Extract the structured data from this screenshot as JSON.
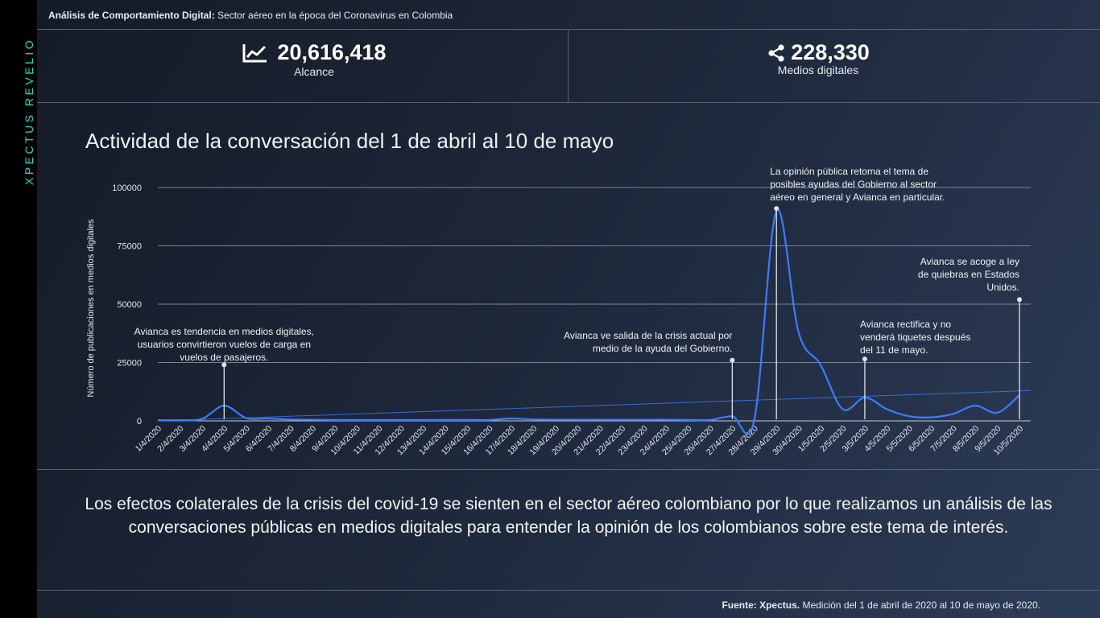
{
  "brand": "XPECTUS REVELIO",
  "header": {
    "bold": "Análisis de Comportamiento Digital:",
    "rest": " Sector aéreo en la época del Coronavirus en Colombia"
  },
  "kpis": [
    {
      "icon": "line-chart-icon",
      "value": "20,616,418",
      "label": "Alcance"
    },
    {
      "icon": "share-icon",
      "value": "228,330",
      "label": "Medios digitales"
    }
  ],
  "chart_title": "Actividad de la conversación del 1 de abril al 10 de mayo",
  "chart_data": {
    "type": "line",
    "ylabel": "Número de publicaciones en medios digitales",
    "ylim": [
      0,
      100000
    ],
    "yticks": [
      0,
      25000,
      50000,
      75000,
      100000
    ],
    "grid": true,
    "categories": [
      "1/4/2020",
      "2/4/2020",
      "3/4/2020",
      "4/4/2020",
      "5/4/2020",
      "6/4/2020",
      "7/4/2020",
      "8/4/2020",
      "9/4/2020",
      "10/4/2020",
      "11/4/2020",
      "12/4/2020",
      "13/4/2020",
      "14/4/2020",
      "15/4/2020",
      "16/4/2020",
      "17/4/2020",
      "18/4/2020",
      "19/4/2020",
      "20/4/2020",
      "21/4/2020",
      "22/4/2020",
      "23/4/2020",
      "24/4/2020",
      "25/4/2020",
      "26/4/2020",
      "27/4/2020",
      "28/4/2020",
      "29/4/2020",
      "30/4/2020",
      "1/5/2020",
      "2/5/2020",
      "3/5/2020",
      "4/5/2020",
      "5/5/2020",
      "6/5/2020",
      "7/5/2020",
      "8/5/2020",
      "9/5/2020",
      "10/5/2020"
    ],
    "series": [
      {
        "values": [
          300,
          300,
          800,
          6500,
          1200,
          1000,
          600,
          500,
          400,
          400,
          400,
          400,
          400,
          400,
          400,
          400,
          1000,
          600,
          500,
          500,
          500,
          500,
          500,
          500,
          400,
          400,
          2000,
          500,
          90000,
          38000,
          24000,
          5000,
          10000,
          5000,
          2000,
          1500,
          3000,
          6500,
          3500,
          11000
        ]
      }
    ],
    "trendline": {
      "from": 0,
      "to": 13000
    },
    "annotations": [
      {
        "index": 3,
        "value": 24000,
        "text": [
          "Avianca es tendencia en medios digitales,",
          "usuarios convirtieron vuelos de carga en",
          "vuelos de pasajeros."
        ]
      },
      {
        "index": 26,
        "value": 26000,
        "text": [
          "Avianca ve salida de la crisis actual por",
          "medio de la ayuda del Gobierno."
        ]
      },
      {
        "index": 28,
        "value": 91000,
        "text": [
          "La opinión pública  retoma el tema de",
          "posibles  ayudas del Gobierno al sector",
          "aéreo en general y Avianca en particular."
        ]
      },
      {
        "index": 32,
        "value": 26500,
        "text": [
          "Avianca rectifica y no",
          "venderá tiquetes después",
          "del 11 de mayo."
        ]
      },
      {
        "index": 39,
        "value": 52000,
        "text": [
          "Avianca se acoge a ley",
          "de quiebras en Estados",
          "Unidos."
        ]
      }
    ]
  },
  "summary": "Los efectos colaterales de la crisis del covid-19 se sienten en el sector aéreo colombiano por lo  que realizamos un análisis de las conversaciones públicas en medios digitales para entender la opinión de los colombianos sobre este tema de interés.",
  "source": {
    "bold": "Fuente: Xpectus.",
    "rest": " Medición del 1 de abril de 2020 al 10 de mayo de 2020."
  },
  "colors": {
    "accent": "#29d8c8",
    "line": "#3d7bff",
    "grid": "#8a93a3"
  }
}
